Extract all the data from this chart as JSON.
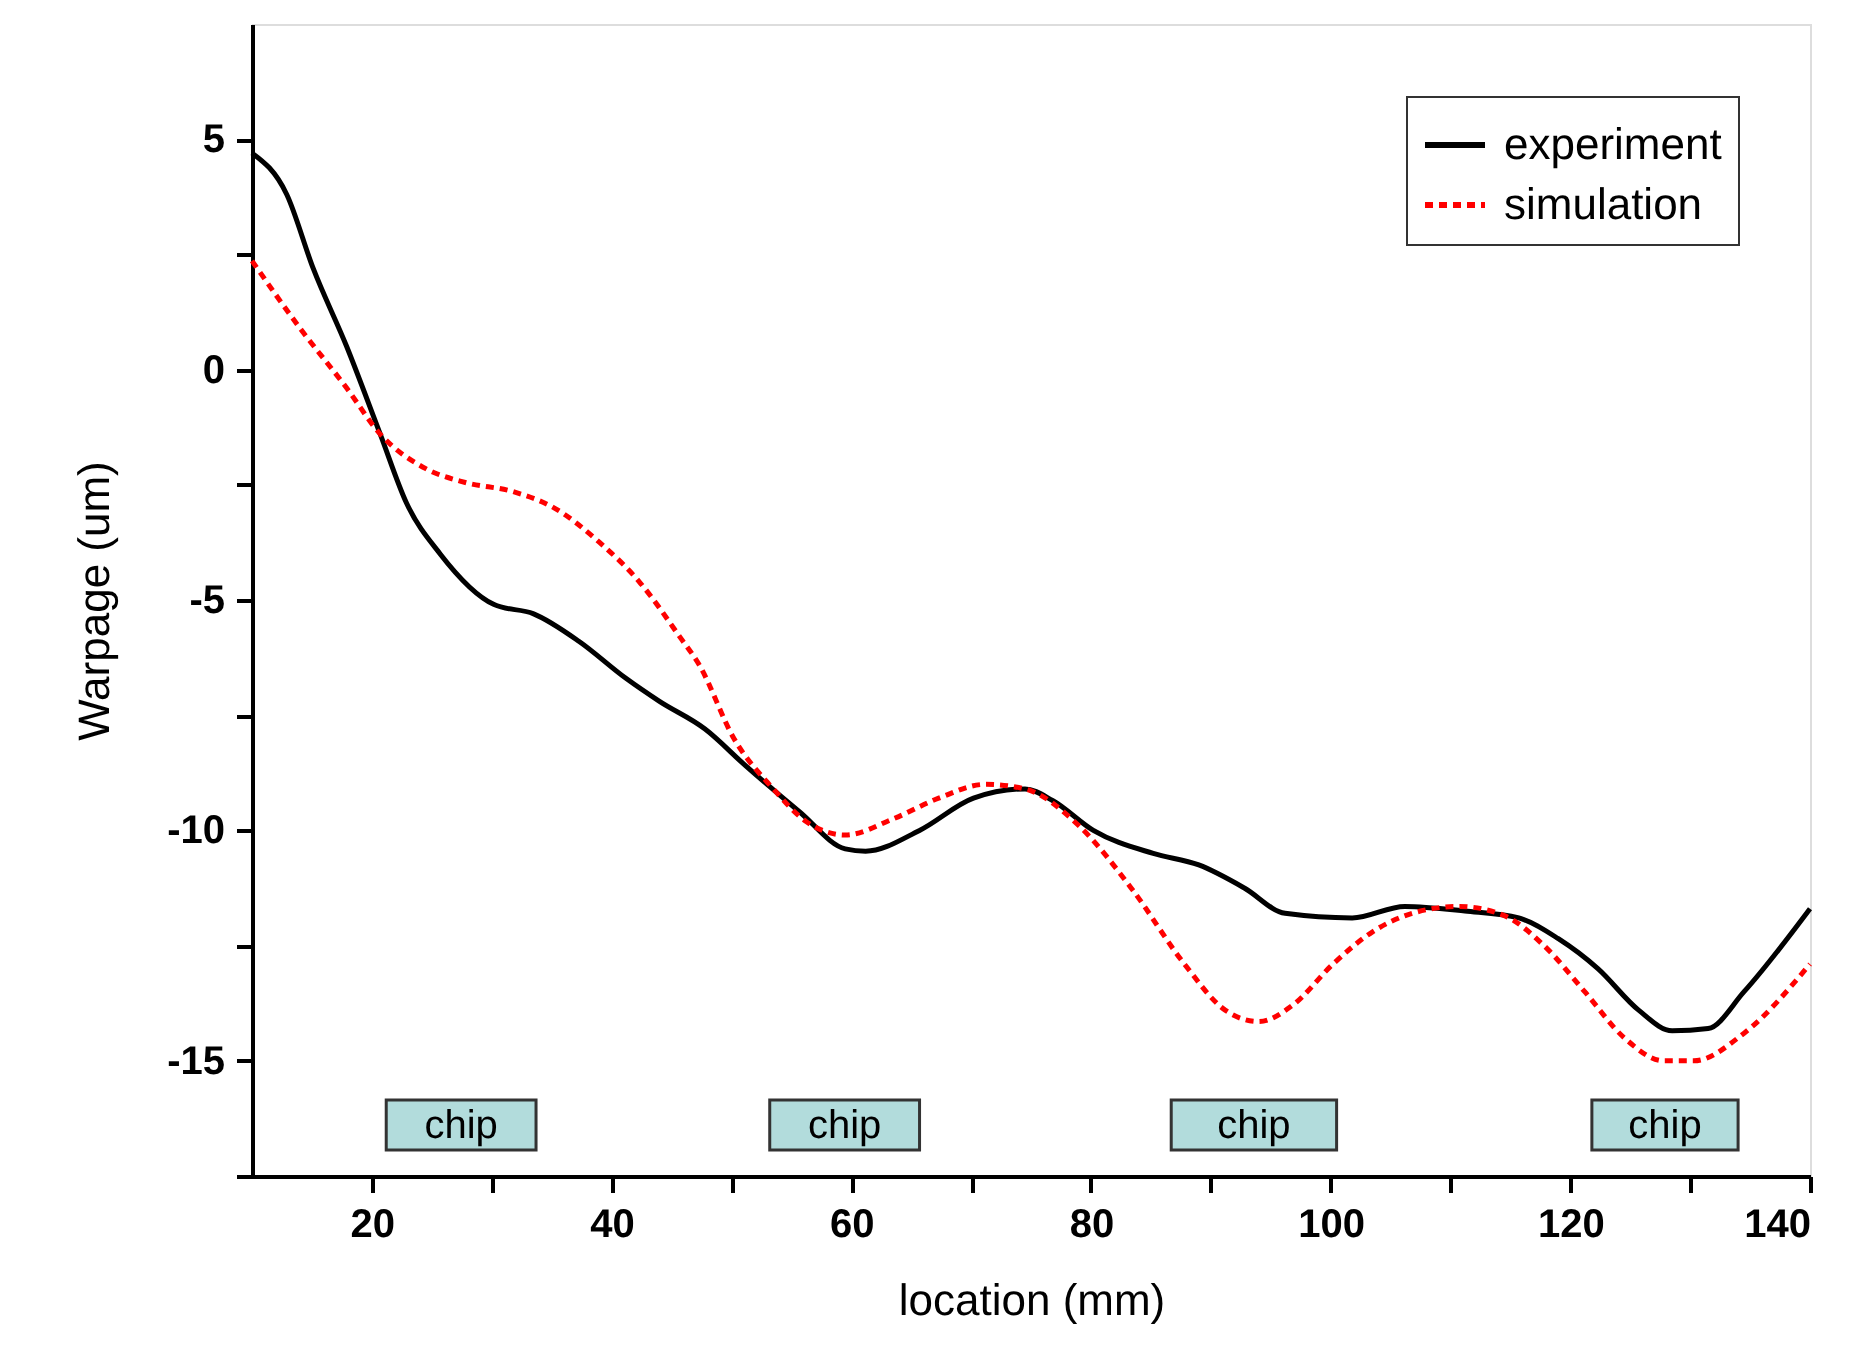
{
  "chart_data": {
    "type": "line",
    "xlabel": "location (mm)",
    "ylabel": "Warpage (um)",
    "xlim": [
      10,
      140
    ],
    "xticks": [
      20,
      {
        "value": 30,
        "label": null
      },
      40,
      {
        "value": 50,
        "label": null
      },
      60,
      {
        "value": 70,
        "label": null
      },
      80,
      {
        "value": 90,
        "label": null
      },
      100,
      {
        "value": 110,
        "label": null
      },
      120,
      {
        "value": 130,
        "label": null
      },
      140
    ],
    "ylim": [
      -17.5,
      7.5
    ],
    "yticks": [
      {
        "value": -17.5,
        "label": null
      },
      -15,
      {
        "value": -12.5,
        "label": null
      },
      -10,
      {
        "value": -7.5,
        "label": null
      },
      -5,
      {
        "value": -2.5,
        "label": null
      },
      0,
      {
        "value": 2.5,
        "label": null
      },
      5
    ],
    "grid": false,
    "legend": "top right",
    "series": [
      {
        "name": "experiment",
        "color": "#000000",
        "line_style": "solid",
        "x": [
          10,
          12.9,
          15.1,
          17.9,
          20.7,
          22.9,
          25.7,
          30.2,
          33.5,
          37.3,
          41.2,
          44,
          47.8,
          51.2,
          55.7,
          59.5,
          61.2,
          65.7,
          70.2,
          74.5,
          76.8,
          80.2,
          85.2,
          89,
          92.8,
          96.2,
          101.8,
          106.2,
          111.2,
          115.7,
          119,
          122.3,
          125.7,
          128.5,
          131.5,
          134.5,
          140
        ],
        "values": [
          4.7,
          3.8,
          2.2,
          0.5,
          -1.4,
          -2.9,
          -4.0,
          -5.1,
          -5.3,
          -5.9,
          -6.7,
          -7.2,
          -7.8,
          -8.6,
          -9.6,
          -10.4,
          -10.45,
          -10.0,
          -9.3,
          -9.1,
          -9.35,
          -10.0,
          -10.5,
          -10.75,
          -11.25,
          -11.8,
          -11.9,
          -11.65,
          -11.75,
          -11.9,
          -12.35,
          -13.0,
          -13.9,
          -14.35,
          -14.3,
          -13.5,
          -11.7
        ]
      },
      {
        "name": "simulation",
        "color": "#ff0000",
        "line_style": "dashed",
        "x": [
          10,
          14,
          17.9,
          20.7,
          24.5,
          27.8,
          31.8,
          35.2,
          39,
          42.3,
          45.7,
          47.3,
          50.2,
          53.5,
          56.2,
          59.5,
          63.5,
          67.3,
          71.2,
          74.5,
          79,
          83.5,
          87.8,
          91.2,
          94,
          96.8,
          100.2,
          103.5,
          106.8,
          110.7,
          114.5,
          117.8,
          121.2,
          124.5,
          127.8,
          130.3,
          134.5,
          140
        ],
        "values": [
          2.36,
          0.9,
          -0.4,
          -1.4,
          -2.15,
          -2.45,
          -2.65,
          -3.0,
          -3.75,
          -4.6,
          -5.8,
          -6.4,
          -8.0,
          -9.1,
          -9.8,
          -10.1,
          -9.75,
          -9.3,
          -9.0,
          -9.1,
          -9.9,
          -11.3,
          -12.9,
          -13.9,
          -14.15,
          -13.8,
          -12.9,
          -12.2,
          -11.8,
          -11.65,
          -11.85,
          -12.5,
          -13.5,
          -14.5,
          -15.0,
          -15.0,
          -14.4,
          -12.9
        ]
      }
    ],
    "bands": [
      {
        "axis": "x",
        "from": 21.2,
        "to": 33.7,
        "label": "chip",
        "color": "#b2dcdc"
      },
      {
        "axis": "x",
        "from": 53.2,
        "to": 65.7,
        "label": "chip",
        "color": "#b2dcdc"
      },
      {
        "axis": "x",
        "from": 86.7,
        "to": 100.5,
        "label": "chip",
        "color": "#b2dcdc"
      },
      {
        "axis": "x",
        "from": 121.8,
        "to": 134,
        "label": "chip",
        "color": "#b2dcdc"
      }
    ]
  }
}
